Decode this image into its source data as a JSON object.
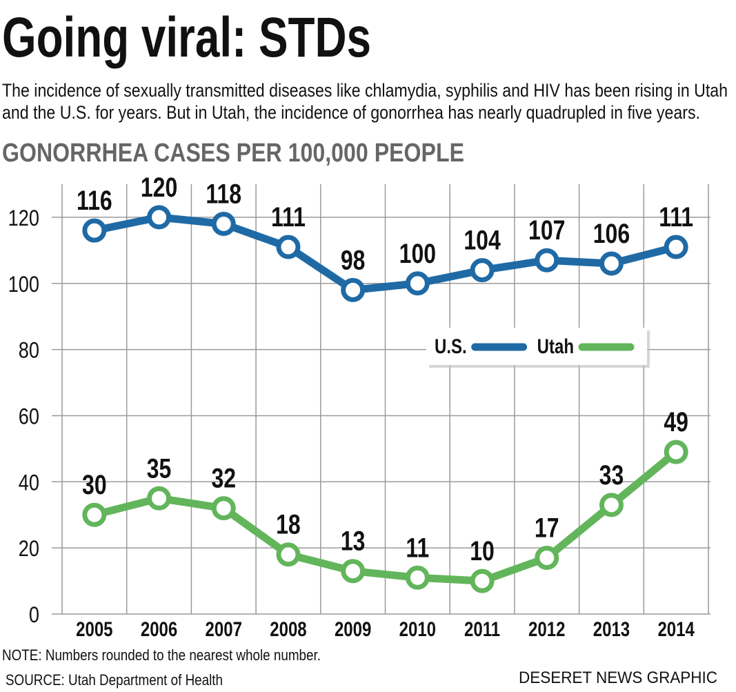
{
  "chart_data": {
    "type": "line",
    "title": "Going viral: STDs",
    "subtitle": [
      "The incidence of sexually transmitted diseases like chlamydia, syphilis and HIV has been rising in Utah",
      "and the U.S. for years. But in Utah, the incidence of gonorrhea has nearly quadrupled in five years."
    ],
    "chart_title": "GONORRHEA CASES PER 100,000 PEOPLE",
    "categories": [
      "2005",
      "2006",
      "2007",
      "2008",
      "2009",
      "2010",
      "2011",
      "2012",
      "2013",
      "2014"
    ],
    "series": [
      {
        "name": "U.S.",
        "color": "#1f6aa5",
        "values": [
          116,
          120,
          118,
          111,
          98,
          100,
          104,
          107,
          106,
          111
        ]
      },
      {
        "name": "Utah",
        "color": "#62b55b",
        "values": [
          30,
          35,
          32,
          18,
          13,
          11,
          10,
          17,
          33,
          49
        ]
      }
    ],
    "ylim": [
      0,
      130
    ],
    "yticks": [
      0,
      20,
      40,
      60,
      80,
      100,
      120
    ],
    "grid": true,
    "legend": "right",
    "note": "NOTE: Numbers rounded to the nearest whole number.",
    "source": "SOURCE:  Utah Department of Health",
    "credit": "DESERET NEWS GRAPHIC"
  }
}
